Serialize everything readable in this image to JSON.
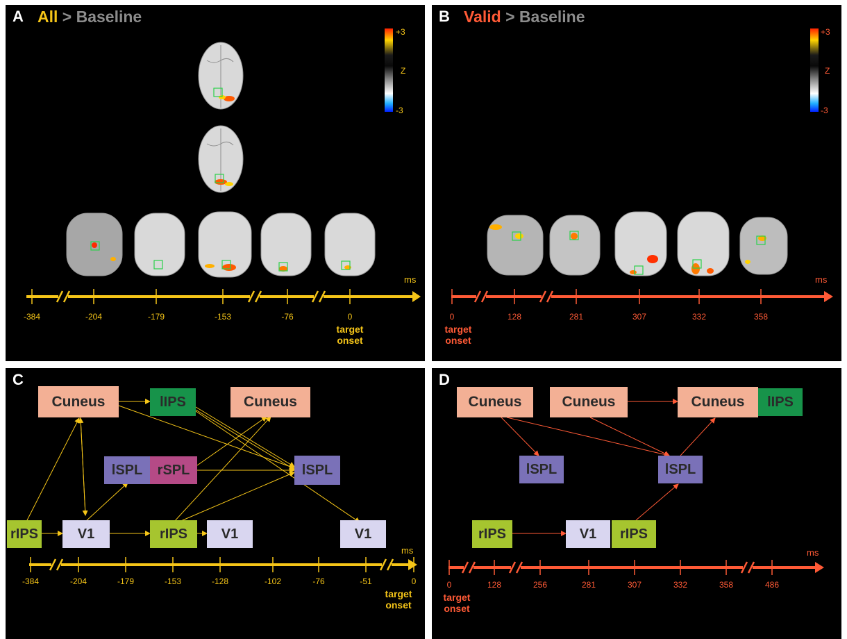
{
  "colors": {
    "yellow": "#f5c518",
    "red": "#ff5a36",
    "gray_text": "#8c8c8c",
    "cuneus": "#f3b095",
    "lips": "#17934a",
    "spl": "#7a71b8",
    "rspl": "#b54a86",
    "rips": "#a6c52f",
    "v1": "#d9d6f0"
  },
  "panel_a": {
    "letter": "A",
    "title_highlight": "All",
    "title_rest": "> Baseline",
    "colorbar": {
      "max": "+3",
      "label": "Z",
      "min": "-3"
    },
    "ticks": [
      "-384",
      "-204",
      "-179",
      "-153",
      "-76",
      "0"
    ],
    "axis_unit": "ms",
    "onset": [
      "target",
      "onset"
    ]
  },
  "panel_b": {
    "letter": "B",
    "title_highlight": "Valid",
    "title_rest": "> Baseline",
    "colorbar": {
      "max": "+3",
      "label": "Z",
      "min": "-3"
    },
    "ticks": [
      "0",
      "128",
      "281",
      "307",
      "332",
      "358"
    ],
    "axis_unit": "ms",
    "onset": [
      "target",
      "onset"
    ]
  },
  "panel_c": {
    "letter": "C",
    "nodes": [
      "Cuneus",
      "lIPS",
      "Cuneus",
      "lSPL",
      "rSPL",
      "lSPL",
      "rIPS",
      "V1",
      "rIPS",
      "V1",
      "V1"
    ],
    "ticks": [
      "-384",
      "-204",
      "-179",
      "-153",
      "-128",
      "-102",
      "-76",
      "-51",
      "0"
    ],
    "axis_unit": "ms",
    "onset": [
      "target",
      "onset"
    ]
  },
  "panel_d": {
    "letter": "D",
    "nodes": [
      "Cuneus",
      "Cuneus",
      "Cuneus",
      "lIPS",
      "lSPL",
      "lSPL",
      "rIPS",
      "V1",
      "rIPS"
    ],
    "ticks": [
      "0",
      "128",
      "256",
      "281",
      "307",
      "332",
      "358",
      "486"
    ],
    "axis_unit": "ms",
    "onset": [
      "target",
      "onset"
    ]
  }
}
